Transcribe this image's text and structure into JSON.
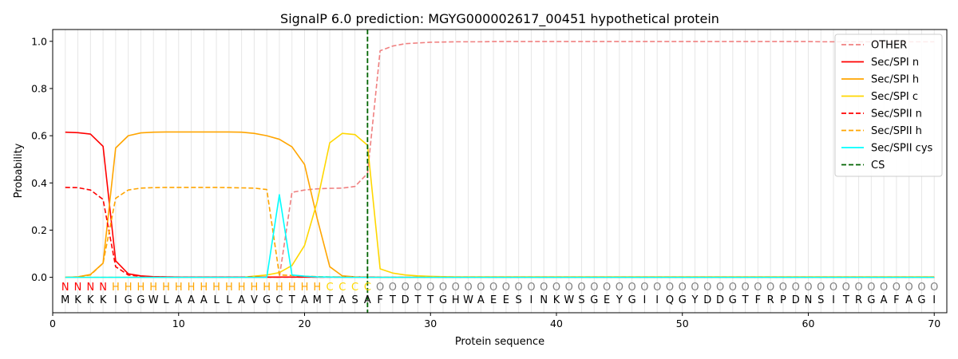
{
  "chart_data": {
    "type": "line",
    "title": "SignalP 6.0 prediction: MGYG000002617_00451 hypothetical protein",
    "xlabel": "Protein sequence",
    "ylabel": "Probability",
    "xlim": [
      0,
      71
    ],
    "ylim": [
      -0.15,
      1.05
    ],
    "xticks": [
      0,
      10,
      20,
      30,
      40,
      50,
      60,
      70
    ],
    "yticks": [
      0.0,
      0.2,
      0.4,
      0.6,
      0.8,
      1.0
    ],
    "ytick_labels": [
      "0.0",
      "0.2",
      "0.4",
      "0.6",
      "0.8",
      "1.0"
    ],
    "grid": "vertical lines at each residue",
    "legend_position": "top-right",
    "sequence": [
      "M",
      "K",
      "K",
      "K",
      "I",
      "G",
      "G",
      "W",
      "L",
      "A",
      "A",
      "A",
      "L",
      "L",
      "A",
      "V",
      "G",
      "C",
      "T",
      "A",
      "M",
      "T",
      "A",
      "S",
      "A",
      "F",
      "T",
      "D",
      "T",
      "T",
      "G",
      "H",
      "W",
      "A",
      "E",
      "E",
      "S",
      "I",
      "N",
      "K",
      "W",
      "S",
      "G",
      "E",
      "Y",
      "G",
      "I",
      "I",
      "Q",
      "G",
      "Y",
      "D",
      "D",
      "G",
      "T",
      "F",
      "R",
      "P",
      "D",
      "N",
      "S",
      "I",
      "T",
      "R",
      "G",
      "A",
      "F",
      "A",
      "G",
      "I"
    ],
    "annotation": [
      "N",
      "N",
      "N",
      "N",
      "H",
      "H",
      "H",
      "H",
      "H",
      "H",
      "H",
      "H",
      "H",
      "H",
      "H",
      "H",
      "H",
      "H",
      "H",
      "H",
      "H",
      "C",
      "C",
      "C",
      "C",
      "O",
      "O",
      "O",
      "O",
      "O",
      "O",
      "O",
      "O",
      "O",
      "O",
      "O",
      "O",
      "O",
      "O",
      "O",
      "O",
      "O",
      "O",
      "O",
      "O",
      "O",
      "O",
      "O",
      "O",
      "O",
      "O",
      "O",
      "O",
      "O",
      "O",
      "O",
      "O",
      "O",
      "O",
      "O",
      "O",
      "O",
      "O",
      "O",
      "O",
      "O",
      "O",
      "O",
      "O",
      "O"
    ],
    "annotation_colors": {
      "N": "#ff0000",
      "H": "#ffa500",
      "C": "#ffd700",
      "O": "#808080"
    },
    "cleavage_site": 25,
    "series": [
      {
        "name": "OTHER",
        "color": "#f08080",
        "dash": "dashed",
        "values": [
          0.0,
          0.0,
          0.0,
          0.0,
          0.0,
          0.0,
          0.0,
          0.0,
          0.0,
          0.0,
          0.0,
          0.0,
          0.0,
          0.0,
          0.0,
          0.0,
          0.0,
          0.0,
          0.36,
          0.37,
          0.375,
          0.377,
          0.378,
          0.385,
          0.44,
          0.96,
          0.98,
          0.99,
          0.993,
          0.996,
          0.997,
          0.998,
          0.998,
          0.998,
          0.999,
          0.999,
          0.999,
          0.999,
          0.999,
          0.999,
          0.999,
          0.999,
          0.999,
          0.999,
          0.999,
          0.999,
          0.999,
          0.999,
          0.999,
          0.999,
          0.999,
          0.999,
          0.999,
          0.999,
          0.999,
          0.999,
          0.999,
          0.999,
          0.999,
          0.999,
          0.998,
          0.998,
          0.998,
          0.998,
          0.998,
          0.998,
          0.998,
          0.998,
          0.998,
          0.998
        ]
      },
      {
        "name": "Sec/SPI n",
        "color": "#ff0000",
        "dash": "solid",
        "values": [
          0.615,
          0.613,
          0.607,
          0.555,
          0.07,
          0.015,
          0.006,
          0.003,
          0.002,
          0.001,
          0.001,
          0.001,
          0.001,
          0.001,
          0.001,
          0.001,
          0.001,
          0.001,
          0.001,
          0.001,
          0.001,
          0.001,
          0.001,
          0.001,
          0.001,
          0.0,
          0.0,
          0.0,
          0.0,
          0.0,
          0.0,
          0.0,
          0.0,
          0.0,
          0.0,
          0.0,
          0.0,
          0.0,
          0.0,
          0.0,
          0.0,
          0.0,
          0.0,
          0.0,
          0.0,
          0.0,
          0.0,
          0.0,
          0.0,
          0.0,
          0.0,
          0.0,
          0.0,
          0.0,
          0.0,
          0.0,
          0.0,
          0.0,
          0.0,
          0.0,
          0.0,
          0.0,
          0.0,
          0.0,
          0.0,
          0.0,
          0.0,
          0.0,
          0.0,
          0.0
        ]
      },
      {
        "name": "Sec/SPI h",
        "color": "#ffa500",
        "dash": "solid",
        "values": [
          0.0,
          0.002,
          0.012,
          0.06,
          0.548,
          0.6,
          0.612,
          0.615,
          0.616,
          0.616,
          0.616,
          0.616,
          0.616,
          0.616,
          0.615,
          0.61,
          0.6,
          0.585,
          0.553,
          0.478,
          0.25,
          0.045,
          0.006,
          0.002,
          0.001,
          0.0,
          0.0,
          0.0,
          0.0,
          0.0,
          0.0,
          0.0,
          0.0,
          0.0,
          0.0,
          0.0,
          0.0,
          0.0,
          0.0,
          0.0,
          0.0,
          0.0,
          0.0,
          0.0,
          0.0,
          0.0,
          0.0,
          0.0,
          0.0,
          0.0,
          0.0,
          0.0,
          0.0,
          0.0,
          0.0,
          0.0,
          0.0,
          0.0,
          0.0,
          0.0,
          0.0,
          0.0,
          0.0,
          0.0,
          0.0,
          0.0,
          0.0,
          0.0,
          0.0,
          0.0
        ]
      },
      {
        "name": "Sec/SPI c",
        "color": "#ffd700",
        "dash": "solid",
        "values": [
          0.0,
          0.0,
          0.0,
          0.0,
          0.0,
          0.0,
          0.0,
          0.0,
          0.0,
          0.0,
          0.0,
          0.0,
          0.0,
          0.0,
          0.0,
          0.005,
          0.01,
          0.02,
          0.05,
          0.135,
          0.32,
          0.57,
          0.61,
          0.605,
          0.56,
          0.036,
          0.018,
          0.01,
          0.006,
          0.004,
          0.003,
          0.002,
          0.002,
          0.002,
          0.002,
          0.002,
          0.002,
          0.002,
          0.002,
          0.002,
          0.002,
          0.002,
          0.002,
          0.002,
          0.002,
          0.002,
          0.002,
          0.002,
          0.002,
          0.002,
          0.002,
          0.002,
          0.002,
          0.002,
          0.002,
          0.002,
          0.002,
          0.002,
          0.002,
          0.002,
          0.002,
          0.002,
          0.002,
          0.002,
          0.002,
          0.002,
          0.002,
          0.002,
          0.002,
          0.002
        ]
      },
      {
        "name": "Sec/SPII n",
        "color": "#ff0000",
        "dash": "dashed",
        "values": [
          0.381,
          0.38,
          0.37,
          0.33,
          0.045,
          0.01,
          0.004,
          0.002,
          0.001,
          0.001,
          0.001,
          0.001,
          0.001,
          0.001,
          0.001,
          0.001,
          0.001,
          0.001,
          0.001,
          0.001,
          0.001,
          0.001,
          0.001,
          0.001,
          0.001,
          0.0,
          0.0,
          0.0,
          0.0,
          0.0,
          0.0,
          0.0,
          0.0,
          0.0,
          0.0,
          0.0,
          0.0,
          0.0,
          0.0,
          0.0,
          0.0,
          0.0,
          0.0,
          0.0,
          0.0,
          0.0,
          0.0,
          0.0,
          0.0,
          0.0,
          0.0,
          0.0,
          0.0,
          0.0,
          0.0,
          0.0,
          0.0,
          0.0,
          0.0,
          0.0,
          0.0,
          0.0,
          0.0,
          0.0,
          0.0,
          0.0,
          0.0,
          0.0,
          0.0,
          0.0
        ]
      },
      {
        "name": "Sec/SPII h",
        "color": "#ffa500",
        "dash": "dashed",
        "values": [
          0.0,
          0.002,
          0.01,
          0.06,
          0.335,
          0.37,
          0.378,
          0.38,
          0.381,
          0.381,
          0.381,
          0.381,
          0.381,
          0.38,
          0.379,
          0.378,
          0.372,
          0.01,
          0.008,
          0.005,
          0.003,
          0.002,
          0.001,
          0.001,
          0.0,
          0.0,
          0.0,
          0.0,
          0.0,
          0.0,
          0.0,
          0.0,
          0.0,
          0.0,
          0.0,
          0.0,
          0.0,
          0.0,
          0.0,
          0.0,
          0.0,
          0.0,
          0.0,
          0.0,
          0.0,
          0.0,
          0.0,
          0.0,
          0.0,
          0.0,
          0.0,
          0.0,
          0.0,
          0.0,
          0.0,
          0.0,
          0.0,
          0.0,
          0.0,
          0.0,
          0.0,
          0.0,
          0.0,
          0.0,
          0.0,
          0.0,
          0.0,
          0.0,
          0.0,
          0.0
        ]
      },
      {
        "name": "Sec/SPII cys",
        "color": "#00ffff",
        "dash": "solid",
        "values": [
          0.0,
          0.0,
          0.0,
          0.0,
          0.0,
          0.0,
          0.0,
          0.0,
          0.0,
          0.0,
          0.0,
          0.0,
          0.0,
          0.0,
          0.0,
          0.0,
          0.0,
          0.35,
          0.01,
          0.005,
          0.002,
          0.001,
          0.0,
          0.0,
          0.0,
          0.0,
          0.0,
          0.0,
          0.0,
          0.0,
          0.0,
          0.0,
          0.0,
          0.0,
          0.0,
          0.0,
          0.0,
          0.0,
          0.0,
          0.0,
          0.0,
          0.0,
          0.0,
          0.0,
          0.0,
          0.0,
          0.0,
          0.0,
          0.0,
          0.0,
          0.0,
          0.0,
          0.0,
          0.0,
          0.0,
          0.0,
          0.0,
          0.0,
          0.0,
          0.0,
          0.0,
          0.0,
          0.0,
          0.0,
          0.0,
          0.0,
          0.0,
          0.0,
          0.0,
          0.0
        ]
      }
    ],
    "legend": [
      {
        "label": "OTHER",
        "color": "#f08080",
        "dash": "dashed"
      },
      {
        "label": "Sec/SPI n",
        "color": "#ff0000",
        "dash": "solid"
      },
      {
        "label": "Sec/SPI h",
        "color": "#ffa500",
        "dash": "solid"
      },
      {
        "label": "Sec/SPI c",
        "color": "#ffd700",
        "dash": "solid"
      },
      {
        "label": "Sec/SPII n",
        "color": "#ff0000",
        "dash": "dashed"
      },
      {
        "label": "Sec/SPII h",
        "color": "#ffa500",
        "dash": "dashed"
      },
      {
        "label": "Sec/SPII cys",
        "color": "#00ffff",
        "dash": "solid"
      },
      {
        "label": "CS",
        "color": "#006400",
        "dash": "dashed"
      }
    ]
  }
}
